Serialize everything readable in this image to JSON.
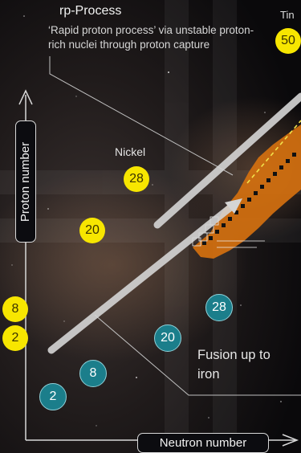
{
  "rp_process": {
    "title": "rp-Process",
    "description": "‘Rapid proton process’ via unstable proton-rich nuclei through proton capture"
  },
  "labels": {
    "tin": "Tin",
    "nickel": "Nickel",
    "fusion": "Fusion up to iron"
  },
  "axes": {
    "y": "Proton number",
    "x": "Neutron number"
  },
  "proton_magic_numbers": [
    "2",
    "8",
    "20",
    "28",
    "50"
  ],
  "neutron_magic_numbers": [
    "2",
    "8",
    "20",
    "28"
  ],
  "colors": {
    "proton_circle": "#f7e600",
    "neutron_circle": "#1b7e8b",
    "path": "#d4700f"
  }
}
